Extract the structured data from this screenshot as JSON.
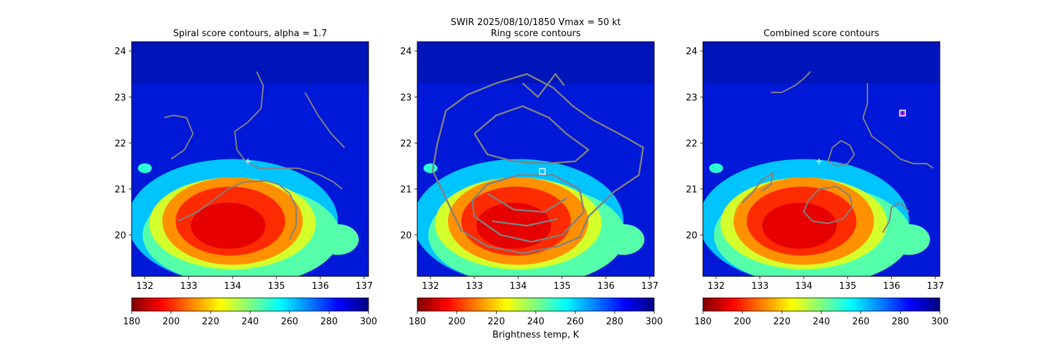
{
  "suptitle_line1": "SWIR  2025/08/10/1850    Vmax = 50 kt",
  "colorbar_label": "Brightness temp, K",
  "colormap": [
    "#800000",
    "#ff0000",
    "#ff8000",
    "#ffff00",
    "#80ff80",
    "#00ffff",
    "#0080ff",
    "#0000ff",
    "#000080"
  ],
  "contour_color": "#808080",
  "marker_color": "#ffffff",
  "best_marker_color": "#ff00ff",
  "chart_data": [
    {
      "type": "heatmap",
      "title": "Spiral score contours, alpha =  1.7",
      "xlim": [
        131.7,
        137.1
      ],
      "ylim": [
        19.1,
        24.2
      ],
      "xticks": [
        132,
        133,
        134,
        135,
        136,
        137
      ],
      "yticks": [
        20,
        21,
        22,
        23,
        24
      ],
      "colorbar": {
        "range": [
          180,
          300
        ],
        "ticks": [
          180,
          200,
          220,
          240,
          260,
          280,
          300
        ]
      },
      "markers": [
        {
          "type": "plus",
          "x": 134.35,
          "y": 21.6
        }
      ],
      "contours": [
        [
          [
            132.6,
            21.65
          ],
          [
            132.9,
            21.85
          ],
          [
            133.1,
            22.2
          ],
          [
            132.95,
            22.55
          ],
          [
            132.65,
            22.6
          ],
          [
            132.45,
            22.55
          ]
        ],
        [
          [
            134.55,
            23.55
          ],
          [
            134.7,
            23.25
          ],
          [
            134.65,
            22.75
          ],
          [
            134.35,
            22.45
          ],
          [
            134.05,
            22.25
          ],
          [
            134.1,
            21.85
          ],
          [
            134.3,
            21.6
          ],
          [
            134.6,
            21.45
          ],
          [
            135.0,
            21.45
          ],
          [
            135.5,
            21.45
          ],
          [
            136.0,
            21.3
          ],
          [
            136.3,
            21.15
          ],
          [
            136.5,
            21.0
          ]
        ],
        [
          [
            135.65,
            23.1
          ],
          [
            135.95,
            22.6
          ],
          [
            136.25,
            22.2
          ],
          [
            136.55,
            21.9
          ]
        ],
        [
          [
            132.75,
            20.3
          ],
          [
            133.2,
            20.5
          ],
          [
            133.55,
            20.75
          ],
          [
            133.9,
            21.0
          ],
          [
            134.25,
            21.15
          ],
          [
            134.75,
            21.18
          ],
          [
            135.05,
            21.1
          ],
          [
            135.3,
            20.9
          ],
          [
            135.45,
            20.6
          ],
          [
            135.45,
            20.2
          ],
          [
            135.3,
            19.9
          ]
        ]
      ]
    },
    {
      "type": "heatmap",
      "title": "Ring score contours",
      "xlim": [
        131.7,
        137.1
      ],
      "ylim": [
        19.1,
        24.2
      ],
      "xticks": [
        132,
        133,
        134,
        135,
        136,
        137
      ],
      "yticks": [
        20,
        21,
        22,
        23,
        24
      ],
      "colorbar": {
        "range": [
          180,
          300
        ],
        "ticks": [
          180,
          200,
          220,
          240,
          260,
          280,
          300
        ]
      },
      "markers": [
        {
          "type": "square",
          "x": 134.55,
          "y": 21.38
        }
      ],
      "contours": [
        [
          [
            132.15,
            21.95
          ],
          [
            132.35,
            22.7
          ],
          [
            132.85,
            23.05
          ],
          [
            133.5,
            23.3
          ],
          [
            134.2,
            23.5
          ],
          [
            134.8,
            23.2
          ],
          [
            135.25,
            22.8
          ],
          [
            135.7,
            22.5
          ],
          [
            136.3,
            22.2
          ],
          [
            136.85,
            21.9
          ],
          [
            136.75,
            21.3
          ],
          [
            136.2,
            20.95
          ],
          [
            135.6,
            20.4
          ],
          [
            135.4,
            19.95
          ],
          [
            134.9,
            19.75
          ],
          [
            134.1,
            19.6
          ],
          [
            133.3,
            19.75
          ],
          [
            132.7,
            20.1
          ],
          [
            132.35,
            20.8
          ],
          [
            132.05,
            21.4
          ],
          [
            132.15,
            21.95
          ]
        ],
        [
          [
            133.0,
            22.2
          ],
          [
            133.5,
            22.6
          ],
          [
            134.1,
            22.8
          ],
          [
            134.7,
            22.55
          ],
          [
            135.1,
            22.2
          ],
          [
            135.6,
            21.85
          ],
          [
            135.3,
            21.6
          ],
          [
            134.6,
            21.55
          ],
          [
            133.9,
            21.6
          ],
          [
            133.3,
            21.75
          ],
          [
            133.0,
            22.2
          ]
        ],
        [
          [
            133.0,
            20.4
          ],
          [
            133.6,
            20.0
          ],
          [
            134.3,
            19.85
          ],
          [
            135.0,
            20.0
          ],
          [
            135.5,
            20.5
          ],
          [
            135.4,
            21.0
          ],
          [
            134.8,
            21.3
          ],
          [
            134.0,
            21.3
          ],
          [
            133.3,
            21.1
          ],
          [
            132.95,
            20.75
          ],
          [
            133.0,
            20.4
          ]
        ],
        [
          [
            133.3,
            20.9
          ],
          [
            133.9,
            20.55
          ],
          [
            134.6,
            20.5
          ],
          [
            135.1,
            20.8
          ]
        ],
        [
          [
            133.4,
            20.3
          ],
          [
            134.2,
            20.2
          ],
          [
            134.9,
            20.35
          ]
        ],
        [
          [
            134.1,
            23.3
          ],
          [
            134.45,
            23.0
          ],
          [
            134.85,
            23.5
          ],
          [
            135.05,
            23.25
          ]
        ]
      ]
    },
    {
      "type": "heatmap",
      "title": "Combined score contours",
      "xlim": [
        131.7,
        137.1
      ],
      "ylim": [
        19.1,
        24.2
      ],
      "xticks": [
        132,
        133,
        134,
        135,
        136,
        137
      ],
      "yticks": [
        20,
        21,
        22,
        23,
        24
      ],
      "colorbar": {
        "range": [
          180,
          300
        ],
        "ticks": [
          180,
          200,
          220,
          240,
          260,
          280,
          300
        ]
      },
      "markers": [
        {
          "type": "plus",
          "x": 134.35,
          "y": 21.6
        },
        {
          "type": "square-best",
          "x": 136.25,
          "y": 22.65
        }
      ],
      "contours": [
        [
          [
            133.25,
            23.1
          ],
          [
            133.5,
            23.1
          ],
          [
            133.8,
            23.25
          ],
          [
            134.0,
            23.4
          ],
          [
            134.15,
            23.55
          ]
        ],
        [
          [
            135.45,
            23.3
          ],
          [
            135.45,
            22.85
          ],
          [
            135.35,
            22.55
          ],
          [
            135.55,
            22.15
          ],
          [
            135.9,
            21.9
          ],
          [
            136.2,
            21.65
          ],
          [
            136.5,
            21.55
          ],
          [
            136.8,
            21.55
          ],
          [
            136.95,
            21.45
          ]
        ],
        [
          [
            134.65,
            21.9
          ],
          [
            134.85,
            22.05
          ],
          [
            135.05,
            21.95
          ],
          [
            135.15,
            21.75
          ],
          [
            135.0,
            21.55
          ],
          [
            134.75,
            21.5
          ],
          [
            134.55,
            21.6
          ],
          [
            134.65,
            21.9
          ]
        ],
        [
          [
            134.1,
            20.75
          ],
          [
            134.35,
            21.0
          ],
          [
            134.75,
            21.05
          ],
          [
            135.05,
            20.85
          ],
          [
            135.1,
            20.6
          ],
          [
            134.9,
            20.35
          ],
          [
            134.55,
            20.25
          ],
          [
            134.2,
            20.3
          ],
          [
            134.0,
            20.5
          ],
          [
            134.1,
            20.75
          ]
        ],
        [
          [
            132.6,
            20.7
          ],
          [
            132.85,
            20.95
          ],
          [
            133.05,
            21.2
          ],
          [
            133.3,
            21.35
          ],
          [
            133.25,
            21.1
          ],
          [
            133.05,
            20.95
          ]
        ],
        [
          [
            135.8,
            20.05
          ],
          [
            135.95,
            20.3
          ],
          [
            136.0,
            20.6
          ],
          [
            136.2,
            20.7
          ],
          [
            136.4,
            20.5
          ]
        ]
      ]
    }
  ]
}
